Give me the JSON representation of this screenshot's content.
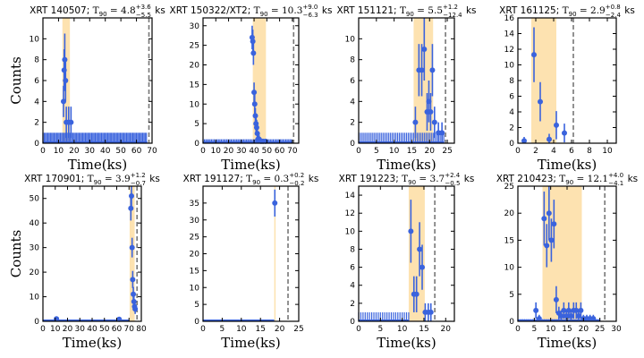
{
  "colors": {
    "point": "#3a63dd",
    "shade": "#fde2b0",
    "dash": "#777777"
  },
  "chart_data": [
    {
      "type": "scatter",
      "label": "XRT 140507; ",
      "sym": "T",
      "sub": "90",
      "eq": " = 4.8",
      "sup_err": "+3.6",
      "sub_err": "−5.5",
      "unit": " ks",
      "xlabel": "Time(ks)",
      "ylabel": "Counts",
      "xlim": [
        0,
        70
      ],
      "ylim": [
        0,
        12
      ],
      "xticks": [
        0,
        10,
        20,
        30,
        40,
        50,
        60,
        70
      ],
      "yticks": [
        0,
        2,
        4,
        6,
        8,
        10
      ],
      "shade": [
        12.5,
        17.3
      ],
      "dash_x": 68,
      "points": [
        [
          13.2,
          4,
          1.5
        ],
        [
          13.6,
          7,
          2
        ],
        [
          14.0,
          8,
          2.5
        ],
        [
          14.5,
          6,
          2
        ],
        [
          15.0,
          2,
          1.5
        ],
        [
          16.5,
          2,
          1.5
        ],
        [
          18.0,
          2,
          1.5
        ]
      ],
      "floor": {
        "x0": 0,
        "x1": 67,
        "step": 0.8,
        "y": 1
      }
    },
    {
      "type": "scatter",
      "label": "XRT 150322/XT2; ",
      "sym": "T",
      "sub": "90",
      "eq": " = 10.3",
      "sup_err": "+9.0",
      "sub_err": "−6.3",
      "unit": " ks",
      "xlabel": "Time(ks)",
      "ylabel": "",
      "xlim": [
        0,
        75
      ],
      "ylim": [
        0,
        32
      ],
      "xticks": [
        0,
        10,
        20,
        30,
        40,
        50,
        60,
        70
      ],
      "yticks": [
        0,
        5,
        10,
        15,
        20,
        25,
        30
      ],
      "shade": [
        39.0,
        49.3
      ],
      "dash_x": 71,
      "points": [
        [
          38.5,
          27,
          3
        ],
        [
          39.0,
          26,
          3
        ],
        [
          39.5,
          23,
          3
        ],
        [
          40.0,
          13,
          2.5
        ],
        [
          40.5,
          10,
          2.5
        ],
        [
          41.0,
          7,
          2
        ],
        [
          41.5,
          5,
          2
        ],
        [
          42.0,
          4,
          2
        ],
        [
          42.5,
          2.5,
          1.5
        ],
        [
          43.0,
          1,
          1
        ],
        [
          44.0,
          1,
          1
        ],
        [
          45.5,
          0.5,
          0.5
        ],
        [
          47.0,
          0.5,
          0.5
        ],
        [
          49.0,
          0.5,
          0.5
        ]
      ],
      "floor": {
        "x0": 0,
        "x1": 70,
        "step": 1.1,
        "y": 1
      }
    },
    {
      "type": "scatter",
      "label": "XRT 151121; ",
      "sym": "T",
      "sub": "90",
      "eq": " = 5.5",
      "sup_err": "+1.2",
      "sub_err": "−12.4",
      "unit": " ks",
      "xlabel": "Time(ks)",
      "ylabel": "",
      "xlim": [
        0,
        27
      ],
      "ylim": [
        0,
        12
      ],
      "xticks": [
        0,
        5,
        10,
        15,
        20,
        25
      ],
      "yticks": [
        0,
        2,
        4,
        6,
        8,
        10
      ],
      "shade": [
        15.5,
        21.0
      ],
      "dash_x": 24.5,
      "points": [
        [
          16.0,
          2,
          1.5
        ],
        [
          17.0,
          7,
          2.5
        ],
        [
          17.8,
          7,
          2.5
        ],
        [
          18.5,
          9,
          3
        ],
        [
          19.3,
          3,
          1.8
        ],
        [
          19.8,
          4,
          2
        ],
        [
          20.3,
          3,
          1.8
        ],
        [
          20.8,
          7,
          2.5
        ],
        [
          21.4,
          2,
          1.5
        ],
        [
          22.5,
          1,
          1
        ],
        [
          23.5,
          1,
          1
        ]
      ],
      "floor": {
        "x0": 0,
        "x1": 24,
        "step": 0.5,
        "y": 1
      }
    },
    {
      "type": "scatter",
      "label": "XRT 161125; ",
      "sym": "T",
      "sub": "90",
      "eq": " = 2.9",
      "sup_err": "+0.8",
      "sub_err": "−2.4",
      "unit": " ks",
      "xlabel": "Time(ks)",
      "ylabel": "",
      "xlim": [
        0,
        11
      ],
      "ylim": [
        0,
        16
      ],
      "xticks": [
        0,
        2,
        4,
        6,
        8,
        10
      ],
      "yticks": [
        0,
        2,
        4,
        6,
        8,
        10,
        12,
        14,
        16
      ],
      "shade": [
        1.5,
        4.3
      ],
      "dash_x": 6.2,
      "points": [
        [
          1.8,
          11.3,
          3.5
        ],
        [
          2.5,
          5.3,
          2.5
        ],
        [
          3.5,
          0.5,
          0.7
        ],
        [
          4.3,
          2.3,
          1.8
        ],
        [
          5.2,
          1.3,
          1.2
        ],
        [
          0.7,
          0.3,
          0.5
        ]
      ],
      "floor": null
    },
    {
      "type": "scatter",
      "label": "XRT 170901; ",
      "sym": "T",
      "sub": "90",
      "eq": " = 3.9",
      "sup_err": "+1.2",
      "sub_err": "−0.7",
      "unit": " ks",
      "xlabel": "Time(ks)",
      "ylabel": "Counts",
      "xlim": [
        0,
        80
      ],
      "ylim": [
        0,
        55
      ],
      "xticks": [
        0,
        10,
        20,
        30,
        40,
        50,
        60,
        70,
        80
      ],
      "yticks": [
        0,
        10,
        20,
        30,
        40,
        50
      ],
      "shade": [
        70.5,
        74.6
      ],
      "dash_x": 76.5,
      "points": [
        [
          71.5,
          46,
          5
        ],
        [
          72.0,
          51,
          5
        ],
        [
          72.5,
          30,
          4
        ],
        [
          73.0,
          17,
          3.5
        ],
        [
          73.5,
          11,
          3
        ],
        [
          74.0,
          8,
          2.5
        ],
        [
          74.5,
          6,
          2
        ],
        [
          75.0,
          5,
          2
        ],
        [
          11.0,
          1,
          1
        ],
        [
          62.0,
          0.8,
          0.8
        ]
      ],
      "floor": {
        "x0": 0,
        "x1": 70,
        "step": 1.5,
        "y": 0.4
      }
    },
    {
      "type": "scatter",
      "label": "XRT 191127; ",
      "sym": "T",
      "sub": "90",
      "eq": " = 0.3",
      "sup_err": "+0.2",
      "sub_err": "−0.2",
      "unit": " ks",
      "xlabel": "Time(ks)",
      "ylabel": "",
      "xlim": [
        0,
        25
      ],
      "ylim": [
        0,
        40
      ],
      "xticks": [
        0,
        5,
        10,
        15,
        20,
        25
      ],
      "yticks": [
        0,
        5,
        10,
        15,
        20,
        25,
        30,
        35
      ],
      "shade": [
        18.6,
        18.9
      ],
      "dash_x": 22.2,
      "points": [
        [
          18.75,
          35,
          4
        ]
      ],
      "floor": {
        "x0": 0,
        "x1": 18.6,
        "step": 0.4,
        "y": 0.4
      }
    },
    {
      "type": "scatter",
      "label": "XRT 191223; ",
      "sym": "T",
      "sub": "90",
      "eq": " = 3.7",
      "sup_err": "+2.4",
      "sub_err": "−0.5",
      "unit": " ks",
      "xlabel": "Time(ks)",
      "ylabel": "",
      "xlim": [
        0,
        22
      ],
      "ylim": [
        0,
        15
      ],
      "xticks": [
        0,
        5,
        10,
        15,
        20
      ],
      "yticks": [
        0,
        2,
        4,
        6,
        8,
        10,
        12,
        14
      ],
      "shade": [
        11.5,
        15.2
      ],
      "dash_x": 17.5,
      "points": [
        [
          12.0,
          10,
          3.5
        ],
        [
          12.7,
          3,
          2
        ],
        [
          13.3,
          3,
          2
        ],
        [
          14.0,
          8,
          3
        ],
        [
          14.6,
          6,
          2.5
        ],
        [
          15.3,
          1,
          1
        ],
        [
          16.0,
          1,
          1
        ],
        [
          16.6,
          1,
          1
        ]
      ],
      "floor": {
        "x0": 0,
        "x1": 11.5,
        "step": 0.5,
        "y": 1
      }
    },
    {
      "type": "scatter",
      "label": "XRT 210423; ",
      "sym": "T",
      "sub": "90",
      "eq": " = 12.1",
      "sup_err": "+4.0",
      "sub_err": "−4.1",
      "unit": " ks",
      "xlabel": "Time(ks)",
      "ylabel": "",
      "xlim": [
        0,
        30
      ],
      "ylim": [
        0,
        25
      ],
      "xticks": [
        0,
        5,
        10,
        15,
        20,
        25,
        30
      ],
      "yticks": [
        0,
        5,
        10,
        15,
        20,
        25
      ],
      "shade": [
        7.5,
        19.5
      ],
      "dash_x": 26.5,
      "points": [
        [
          8.0,
          19,
          5
        ],
        [
          8.8,
          14,
          4
        ],
        [
          9.5,
          20,
          5
        ],
        [
          10.2,
          15,
          4
        ],
        [
          11.0,
          18,
          4.5
        ],
        [
          11.7,
          4,
          2.5
        ],
        [
          5.5,
          2,
          1.5
        ],
        [
          6.5,
          0.5,
          0.7
        ],
        [
          12.5,
          1.5,
          1.2
        ],
        [
          13.2,
          1,
          1
        ],
        [
          14.0,
          2,
          1.5
        ],
        [
          14.8,
          1,
          1
        ],
        [
          15.5,
          2,
          1.5
        ],
        [
          16.2,
          1,
          1
        ],
        [
          17.0,
          2,
          1.5
        ],
        [
          17.8,
          2,
          1.5
        ],
        [
          18.5,
          1,
          1
        ],
        [
          19.2,
          2,
          1.5
        ],
        [
          20.0,
          0.5,
          0.7
        ],
        [
          21.0,
          0.5,
          0.7
        ],
        [
          22.0,
          0.5,
          0.7
        ],
        [
          23.0,
          0.5,
          0.7
        ]
      ],
      "floor": {
        "x0": 0,
        "x1": 25,
        "step": 0.5,
        "y": 0.4
      }
    }
  ]
}
